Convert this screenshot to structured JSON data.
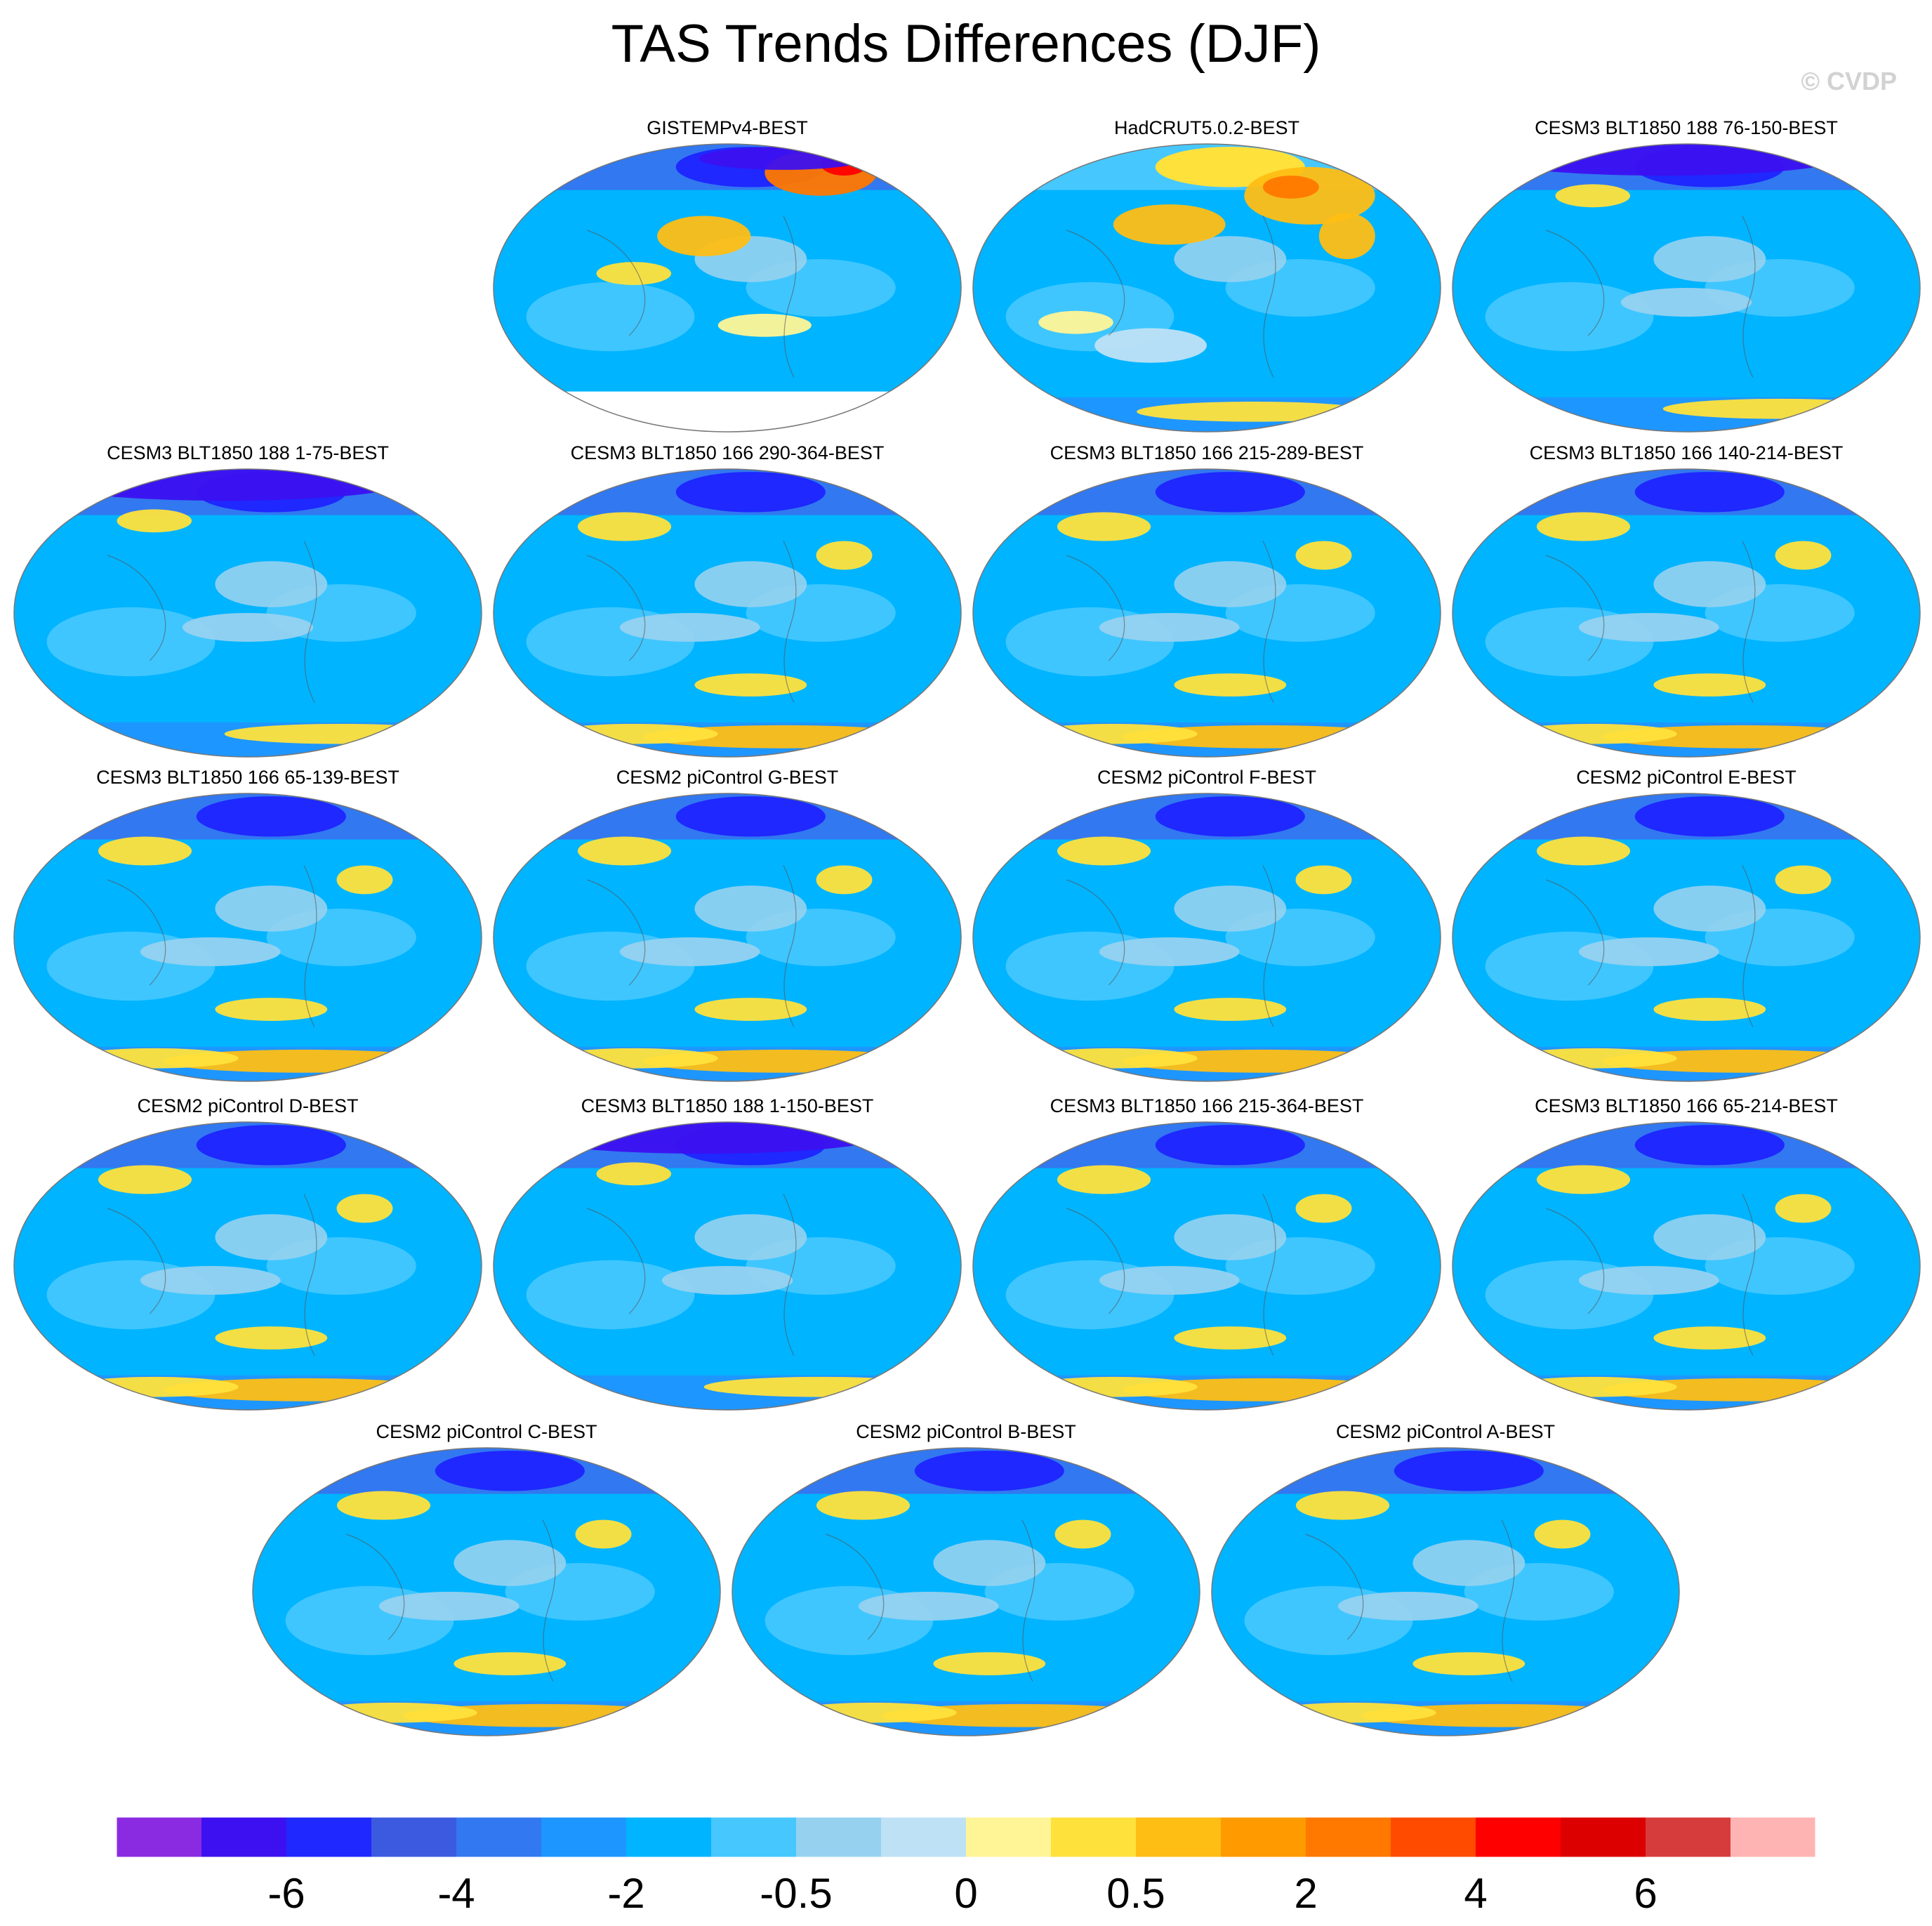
{
  "title": "TAS Trends Differences (DJF)",
  "watermark": "© CVDP",
  "chart_data": {
    "type": "heatmap",
    "projection": "robinson-like global maps",
    "variable": "TAS",
    "season": "DJF",
    "panels": [
      {
        "name": "GISTEMPv4-BEST",
        "row": 0,
        "col": 1,
        "pattern": "obs",
        "missing_data": true
      },
      {
        "name": "HadCRUT5.0.2-BEST",
        "row": 0,
        "col": 2,
        "pattern": "warm"
      },
      {
        "name": "CESM3 BLT1850 188 76-150-BEST",
        "row": 0,
        "col": 3,
        "pattern": "cold-north"
      },
      {
        "name": "CESM3 BLT1850 188 1-75-BEST",
        "row": 1,
        "col": 0,
        "pattern": "cold-north"
      },
      {
        "name": "CESM3 BLT1850 166 290-364-BEST",
        "row": 1,
        "col": 1,
        "pattern": "model"
      },
      {
        "name": "CESM3 BLT1850 166 215-289-BEST",
        "row": 1,
        "col": 2,
        "pattern": "model"
      },
      {
        "name": "CESM3 BLT1850 166 140-214-BEST",
        "row": 1,
        "col": 3,
        "pattern": "model"
      },
      {
        "name": "CESM3 BLT1850 166 65-139-BEST",
        "row": 2,
        "col": 0,
        "pattern": "model"
      },
      {
        "name": "CESM2 piControl G-BEST",
        "row": 2,
        "col": 1,
        "pattern": "model"
      },
      {
        "name": "CESM2 piControl F-BEST",
        "row": 2,
        "col": 2,
        "pattern": "model"
      },
      {
        "name": "CESM2 piControl E-BEST",
        "row": 2,
        "col": 3,
        "pattern": "model"
      },
      {
        "name": "CESM2 piControl D-BEST",
        "row": 3,
        "col": 0,
        "pattern": "model"
      },
      {
        "name": "CESM3 BLT1850 188 1-150-BEST",
        "row": 3,
        "col": 1,
        "pattern": "cold-north"
      },
      {
        "name": "CESM3 BLT1850 166 215-364-BEST",
        "row": 3,
        "col": 2,
        "pattern": "model"
      },
      {
        "name": "CESM3 BLT1850 166 65-214-BEST",
        "row": 3,
        "col": 3,
        "pattern": "model"
      },
      {
        "name": "CESM2 piControl C-BEST",
        "row": 4,
        "col": 0,
        "pattern": "model"
      },
      {
        "name": "CESM2 piControl B-BEST",
        "row": 4,
        "col": 1,
        "pattern": "model"
      },
      {
        "name": "CESM2 piControl A-BEST",
        "row": 4,
        "col": 2,
        "pattern": "model"
      }
    ],
    "colorbar": {
      "colors": [
        "#8a2be2",
        "#3c10f0",
        "#1e28ff",
        "#3c5ae0",
        "#3278f0",
        "#1e96ff",
        "#00b4ff",
        "#46c8ff",
        "#96d2f0",
        "#bee1f5",
        "#fff596",
        "#ffe13c",
        "#ffbe14",
        "#ff9b00",
        "#ff7800",
        "#ff4b00",
        "#ff0000",
        "#dc0000",
        "#d73c3c",
        "#ffb4b4"
      ],
      "tick_labels": [
        "-6",
        "-4",
        "-2",
        "-0.5",
        "0",
        "0.5",
        "2",
        "4",
        "6"
      ],
      "tick_boundaries": [
        2,
        4,
        6,
        8,
        10,
        12,
        14,
        16,
        18
      ]
    }
  }
}
